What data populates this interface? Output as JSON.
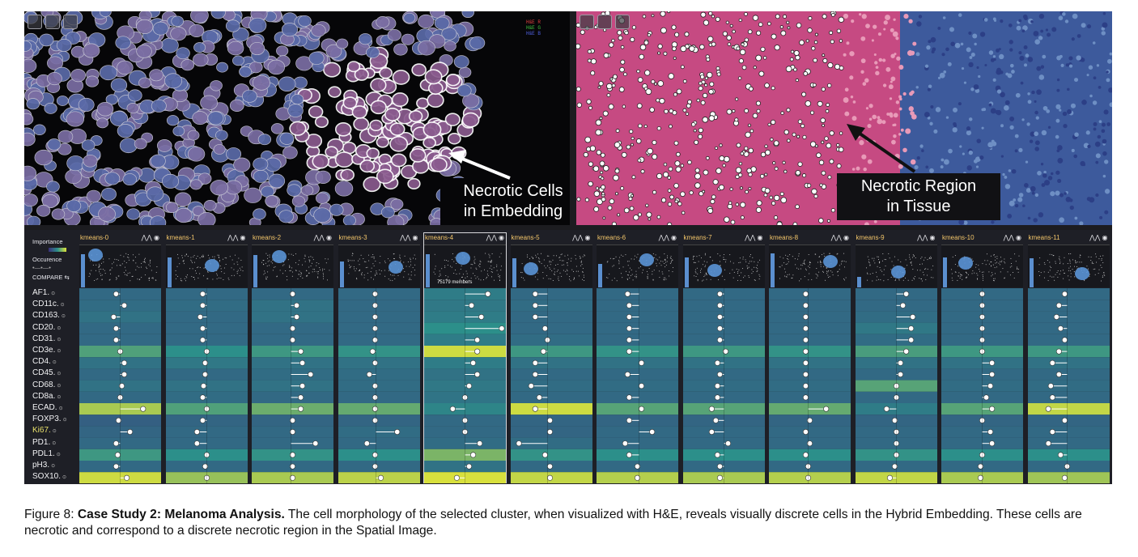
{
  "caption": {
    "figure_label": "Figure 8:",
    "title": "Case Study 2: Melanoma Analysis.",
    "text": "The cell morphology of the selected cluster, when visualized with H&E, reveals visually discrete cells in the Hybrid Embedding. These cells are necrotic and correspond to a discrete necrotic region in the Spatial Image."
  },
  "left_view": {
    "channels": [
      {
        "label": "H&E R",
        "color": "#e04040"
      },
      {
        "label": "H&E G",
        "color": "#40c040"
      },
      {
        "label": "H&E B",
        "color": "#5060e0"
      }
    ],
    "callout_line1": "Necrotic Cells",
    "callout_line2": "in Embedding"
  },
  "right_view": {
    "callout_line1": "Necrotic Region",
    "callout_line2": "in Tissue"
  },
  "legend": {
    "importance": "Importance",
    "occurence": "Occurence",
    "compare": "COMPARE ⇆"
  },
  "markers": [
    "AF1.",
    "CD11c.",
    "CD163.",
    "CD20.",
    "CD31.",
    "CD3e.",
    "CD4.",
    "CD45.",
    "CD68.",
    "CD8a.",
    "ECAD.",
    "FOXP3.",
    "Ki67.",
    "PD1.",
    "PDL1.",
    "pH3.",
    "SOX10."
  ],
  "highlight_marker": "Ki67.",
  "selected_cluster": "kmeans-4",
  "selected_members": "75179 members",
  "colors": {
    "accent": "#f2c56a",
    "low": "#3b2f7a",
    "mid": "#2c8f8a",
    "high": "#dfe33a"
  },
  "icons": [
    "move-icon",
    "lasso-icon",
    "fullscreen-icon",
    "compare-icon",
    "eye-icon"
  ],
  "clusters": [
    {
      "name": "kmeans-0",
      "occurrence": 0.78,
      "importance": [
        0.3,
        0.32,
        0.35,
        0.3,
        0.3,
        0.6,
        0.35,
        0.3,
        0.35,
        0.3,
        0.85,
        0.25,
        0.28,
        0.3,
        0.55,
        0.3,
        0.95
      ],
      "dot": [
        0.45,
        0.55,
        0.42,
        0.45,
        0.45,
        0.5,
        0.55,
        0.55,
        0.52,
        0.5,
        0.78,
        0.48,
        0.62,
        0.45,
        0.47,
        0.45,
        0.58
      ],
      "mean": 0.5
    },
    {
      "name": "kmeans-1",
      "occurrence": 0.72,
      "importance": [
        0.3,
        0.32,
        0.3,
        0.3,
        0.3,
        0.5,
        0.38,
        0.3,
        0.35,
        0.32,
        0.6,
        0.28,
        0.3,
        0.3,
        0.5,
        0.3,
        0.8
      ],
      "dot": [
        0.45,
        0.45,
        0.42,
        0.45,
        0.45,
        0.5,
        0.48,
        0.48,
        0.46,
        0.45,
        0.5,
        0.45,
        0.38,
        0.38,
        0.5,
        0.48,
        0.5
      ],
      "mean": 0.5
    },
    {
      "name": "kmeans-2",
      "occurrence": 0.76,
      "importance": [
        0.3,
        0.35,
        0.35,
        0.3,
        0.3,
        0.55,
        0.35,
        0.32,
        0.35,
        0.3,
        0.68,
        0.28,
        0.3,
        0.3,
        0.52,
        0.3,
        0.85
      ],
      "dot": [
        0.5,
        0.55,
        0.55,
        0.5,
        0.5,
        0.6,
        0.62,
        0.72,
        0.62,
        0.6,
        0.6,
        0.5,
        0.5,
        0.78,
        0.5,
        0.5,
        0.5
      ],
      "mean": 0.48
    },
    {
      "name": "kmeans-3",
      "occurrence": 0.62,
      "importance": [
        0.3,
        0.3,
        0.3,
        0.3,
        0.3,
        0.52,
        0.35,
        0.32,
        0.32,
        0.3,
        0.66,
        0.28,
        0.32,
        0.3,
        0.5,
        0.3,
        0.9
      ],
      "dot": [
        0.45,
        0.45,
        0.45,
        0.45,
        0.45,
        0.42,
        0.45,
        0.38,
        0.45,
        0.45,
        0.45,
        0.45,
        0.72,
        0.35,
        0.45,
        0.45,
        0.52
      ],
      "mean": 0.46
    },
    {
      "name": "kmeans-4",
      "occurrence": 0.78,
      "importance": [
        0.4,
        0.38,
        0.4,
        0.5,
        0.4,
        0.95,
        0.4,
        0.35,
        0.38,
        0.36,
        0.45,
        0.3,
        0.3,
        0.32,
        0.72,
        0.35,
        0.98
      ],
      "dot": [
        0.78,
        0.58,
        0.7,
        0.95,
        0.65,
        0.65,
        0.6,
        0.65,
        0.55,
        0.5,
        0.35,
        0.5,
        0.5,
        0.68,
        0.6,
        0.55,
        0.4
      ],
      "mean": 0.5
    },
    {
      "name": "kmeans-5",
      "occurrence": 0.7,
      "importance": [
        0.3,
        0.32,
        0.3,
        0.3,
        0.32,
        0.55,
        0.35,
        0.3,
        0.32,
        0.3,
        0.95,
        0.28,
        0.28,
        0.32,
        0.52,
        0.3,
        0.92
      ],
      "dot": [
        0.3,
        0.3,
        0.3,
        0.42,
        0.45,
        0.4,
        0.3,
        0.3,
        0.25,
        0.35,
        0.3,
        0.48,
        0.48,
        0.1,
        0.42,
        0.48,
        0.48
      ],
      "mean": 0.45
    },
    {
      "name": "kmeans-6",
      "occurrence": 0.55,
      "importance": [
        0.3,
        0.3,
        0.3,
        0.3,
        0.3,
        0.52,
        0.35,
        0.3,
        0.32,
        0.3,
        0.62,
        0.28,
        0.3,
        0.3,
        0.5,
        0.3,
        0.88
      ],
      "dot": [
        0.38,
        0.4,
        0.4,
        0.4,
        0.4,
        0.4,
        0.55,
        0.38,
        0.55,
        0.4,
        0.55,
        0.4,
        0.68,
        0.35,
        0.4,
        0.5,
        0.5
      ],
      "mean": 0.52
    },
    {
      "name": "kmeans-7",
      "occurrence": 0.72,
      "importance": [
        0.3,
        0.3,
        0.3,
        0.3,
        0.3,
        0.55,
        0.35,
        0.3,
        0.32,
        0.3,
        0.62,
        0.28,
        0.3,
        0.3,
        0.5,
        0.3,
        0.85
      ],
      "dot": [
        0.45,
        0.45,
        0.45,
        0.45,
        0.45,
        0.52,
        0.42,
        0.45,
        0.42,
        0.42,
        0.35,
        0.4,
        0.35,
        0.55,
        0.42,
        0.45,
        0.45
      ],
      "mean": 0.5
    },
    {
      "name": "kmeans-8",
      "occurrence": 0.8,
      "importance": [
        0.3,
        0.3,
        0.3,
        0.3,
        0.3,
        0.52,
        0.35,
        0.3,
        0.32,
        0.3,
        0.66,
        0.28,
        0.3,
        0.3,
        0.5,
        0.3,
        0.88
      ],
      "dot": [
        0.45,
        0.45,
        0.45,
        0.45,
        0.45,
        0.45,
        0.45,
        0.45,
        0.45,
        0.45,
        0.7,
        0.5,
        0.45,
        0.5,
        0.45,
        0.48,
        0.48
      ],
      "mean": 0.48
    },
    {
      "name": "kmeans-9",
      "occurrence": 0.25,
      "importance": [
        0.3,
        0.3,
        0.32,
        0.38,
        0.32,
        0.58,
        0.35,
        0.3,
        0.62,
        0.3,
        0.4,
        0.28,
        0.3,
        0.3,
        0.52,
        0.3,
        0.92
      ],
      "dot": [
        0.62,
        0.58,
        0.7,
        0.68,
        0.68,
        0.62,
        0.55,
        0.55,
        0.5,
        0.5,
        0.38,
        0.48,
        0.5,
        0.5,
        0.5,
        0.48,
        0.42
      ],
      "mean": 0.5
    },
    {
      "name": "kmeans-10",
      "occurrence": 0.72,
      "importance": [
        0.3,
        0.3,
        0.3,
        0.3,
        0.3,
        0.55,
        0.35,
        0.3,
        0.32,
        0.3,
        0.62,
        0.28,
        0.3,
        0.3,
        0.5,
        0.3,
        0.85
      ],
      "dot": [
        0.5,
        0.5,
        0.5,
        0.5,
        0.5,
        0.5,
        0.62,
        0.62,
        0.6,
        0.55,
        0.62,
        0.5,
        0.6,
        0.62,
        0.5,
        0.48,
        0.48
      ],
      "mean": 0.5
    },
    {
      "name": "kmeans-11",
      "occurrence": 0.7,
      "importance": [
        0.3,
        0.3,
        0.3,
        0.3,
        0.3,
        0.55,
        0.35,
        0.3,
        0.32,
        0.3,
        0.92,
        0.28,
        0.3,
        0.3,
        0.5,
        0.3,
        0.82
      ],
      "dot": [
        0.45,
        0.38,
        0.35,
        0.4,
        0.45,
        0.38,
        0.3,
        0.38,
        0.28,
        0.3,
        0.25,
        0.45,
        0.3,
        0.25,
        0.4,
        0.48,
        0.45
      ],
      "mean": 0.48
    }
  ]
}
